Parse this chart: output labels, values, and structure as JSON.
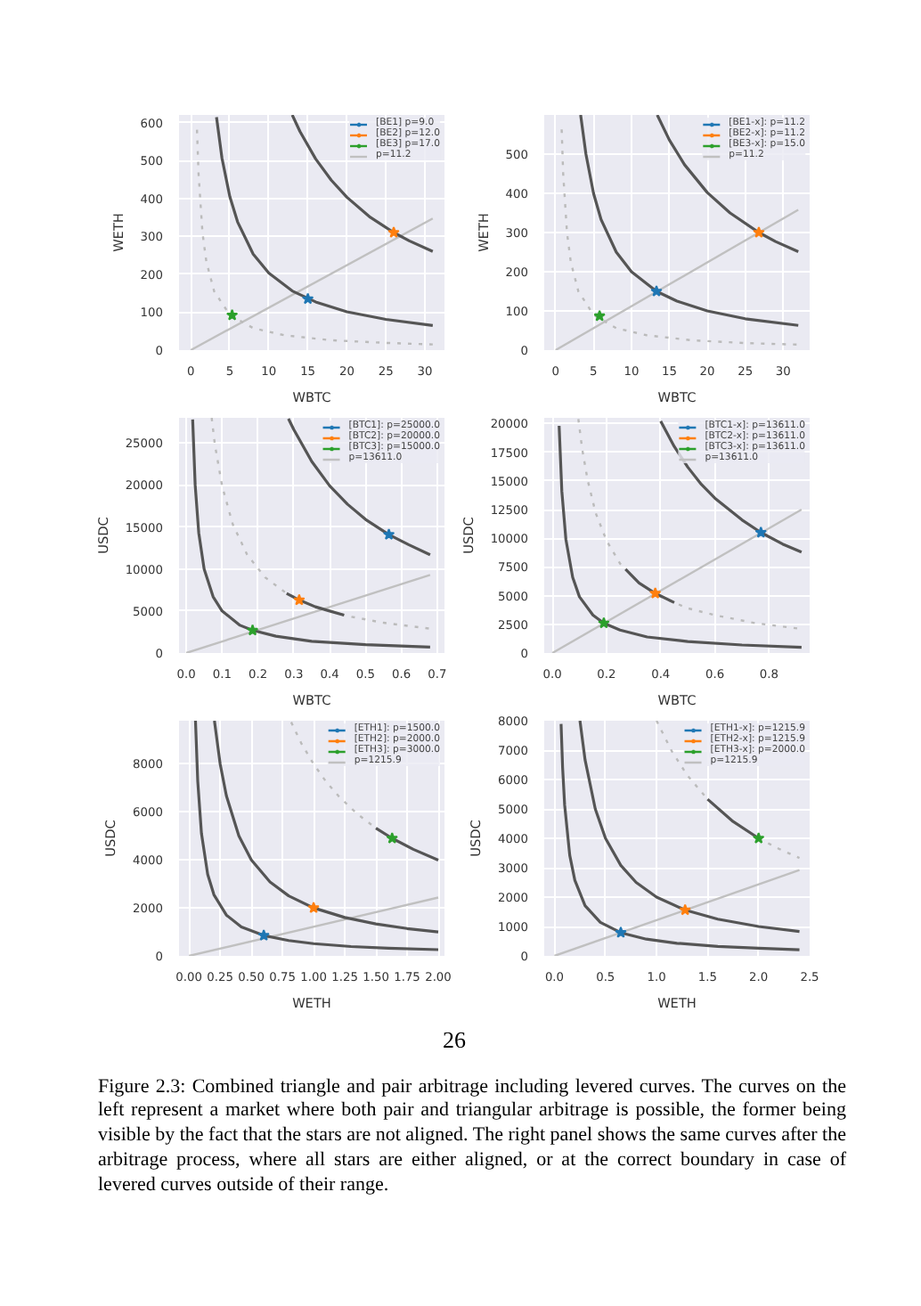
{
  "chart_data": [
    {
      "type": "line",
      "xlabel": "WBTC",
      "ylabel": "WETH",
      "xlim": [
        -1.5,
        32.5
      ],
      "ylim": [
        0,
        620
      ],
      "xticks": [
        0,
        5,
        10,
        15,
        20,
        25,
        30
      ],
      "yticks": [
        0,
        100,
        200,
        300,
        400,
        500,
        600
      ],
      "grid": true,
      "legend": "top right",
      "series": [
        {
          "name": "[BE1] p=9.0",
          "marker": "star",
          "color": "#1f77b4",
          "x": [
            15
          ],
          "values": [
            135
          ]
        },
        {
          "name": "[BE2] p=12.0",
          "marker": "star",
          "color": "#ff7f0e",
          "x": [
            26
          ],
          "values": [
            310
          ]
        },
        {
          "name": "[BE3] p=17.0",
          "marker": "star",
          "color": "#2ca02c",
          "x": [
            5.3
          ],
          "values": [
            92
          ]
        },
        {
          "name": "p=11.2",
          "color": "#c0c0c0",
          "x": [
            0,
            31
          ],
          "values": [
            0,
            347
          ]
        },
        {
          "color": "#555555",
          "x": [
            3.3,
            4,
            5,
            6,
            8,
            10,
            13,
            16,
            20,
            25,
            31
          ],
          "values": [
            614,
            506,
            405,
            338,
            253,
            203,
            156,
            127,
            101,
            81,
            65
          ]
        },
        {
          "color": "#555555",
          "x": [
            13,
            14,
            16,
            18,
            20,
            23,
            26,
            28,
            31
          ],
          "values": [
            620,
            576,
            504,
            448,
            403,
            350,
            310,
            288,
            260
          ]
        },
        {
          "color": "#bbbbbb",
          "line_style": "dotted",
          "x": [
            0.8,
            1,
            1.5,
            2,
            3,
            5,
            8,
            12,
            18,
            25,
            31
          ],
          "values": [
            581,
            465,
            310,
            233,
            155,
            93,
            58,
            39,
            26,
            19,
            15
          ]
        }
      ]
    },
    {
      "type": "line",
      "xlabel": "WBTC",
      "ylabel": "WETH",
      "xlim": [
        -1.5,
        33.5
      ],
      "ylim": [
        0,
        600
      ],
      "xticks": [
        0,
        5,
        10,
        15,
        20,
        25,
        30
      ],
      "yticks": [
        0,
        100,
        200,
        300,
        400,
        500
      ],
      "grid": true,
      "legend": "top right",
      "series": [
        {
          "name": "[BE1-x]: p=11.2",
          "marker": "star",
          "color": "#1f77b4",
          "x": [
            13.3
          ],
          "values": [
            150
          ]
        },
        {
          "name": "[BE2-x]: p=11.2",
          "marker": "star",
          "color": "#ff7f0e",
          "x": [
            26.8
          ],
          "values": [
            300
          ]
        },
        {
          "name": "[BE3-x]: p=15.0",
          "marker": "star",
          "color": "#2ca02c",
          "x": [
            5.8
          ],
          "values": [
            87
          ]
        },
        {
          "name": "p=11.2",
          "color": "#c0c0c0",
          "x": [
            0,
            32
          ],
          "values": [
            0,
            358
          ]
        },
        {
          "color": "#555555",
          "x": [
            3.3,
            4,
            5,
            6,
            8,
            10,
            13.3,
            16,
            20,
            25,
            32
          ],
          "values": [
            600,
            500,
            400,
            333,
            250,
            200,
            150,
            125,
            100,
            80,
            63
          ]
        },
        {
          "color": "#555555",
          "x": [
            13.4,
            15,
            17,
            20,
            23,
            26.8,
            29,
            32
          ],
          "values": [
            600,
            536,
            473,
            402,
            350,
            300,
            277,
            251
          ]
        },
        {
          "color": "#bbbbbb",
          "line_style": "dotted",
          "x": [
            0.8,
            1,
            1.5,
            2,
            3,
            5,
            8,
            12,
            18,
            25,
            32
          ],
          "values": [
            563,
            450,
            300,
            225,
            150,
            90,
            56,
            38,
            25,
            18,
            14
          ]
        }
      ]
    },
    {
      "type": "line",
      "xlabel": "WBTC",
      "ylabel": "USDC",
      "xlim": [
        -0.02,
        0.72
      ],
      "ylim": [
        0,
        28000
      ],
      "xticks": [
        {
          "value": 0,
          "label": "0.0"
        },
        0.1,
        0.2,
        0.3,
        0.4,
        0.5,
        0.6,
        0.7
      ],
      "yticks": [
        0,
        5000,
        10000,
        15000,
        20000,
        25000
      ],
      "grid": true,
      "legend": "top right",
      "series": [
        {
          "name": "[BTC1]: p=25000.0",
          "marker": "star",
          "color": "#1f77b4",
          "x": [
            0.565
          ],
          "values": [
            14100
          ]
        },
        {
          "name": "[BTC2]: p=20000.0",
          "marker": "star",
          "color": "#ff7f0e",
          "x": [
            0.315
          ],
          "values": [
            6300
          ]
        },
        {
          "name": "[BTC3]: p=15000.0",
          "marker": "star",
          "color": "#2ca02c",
          "x": [
            0.185
          ],
          "values": [
            2700
          ]
        },
        {
          "name": "p=13611.0",
          "color": "#c0c0c0",
          "x": [
            0,
            0.68
          ],
          "values": [
            0,
            9300
          ]
        },
        {
          "color": "#bbbbbb",
          "line_style": "dotted",
          "x": [
            0.071,
            0.08,
            0.1,
            0.13,
            0.17,
            0.22,
            0.28,
            0.36,
            0.45,
            0.55,
            0.68
          ],
          "values": [
            28000,
            24800,
            19900,
            15300,
            11700,
            9000,
            7100,
            5500,
            4400,
            3600,
            2900
          ]
        },
        {
          "color": "#555555",
          "x": [
            0.018,
            0.025,
            0.035,
            0.05,
            0.075,
            0.1,
            0.15,
            0.185,
            0.25,
            0.35,
            0.5,
            0.68
          ],
          "values": [
            27800,
            20000,
            14300,
            10000,
            6700,
            5000,
            3300,
            2700,
            2000,
            1400,
            1000,
            700
          ]
        },
        {
          "color": "#555555",
          "x": [
            0.285,
            0.3,
            0.35,
            0.4,
            0.45,
            0.5,
            0.565,
            0.62,
            0.68
          ],
          "values": [
            27900,
            26600,
            22800,
            19900,
            17700,
            15900,
            14100,
            12900,
            11700
          ]
        },
        {
          "color": "#555555",
          "x": [
            0.28,
            0.315,
            0.36,
            0.4,
            0.44
          ],
          "values": [
            7100,
            6300,
            5500,
            5000,
            4500
          ]
        }
      ]
    },
    {
      "type": "line",
      "xlabel": "WBTC",
      "ylabel": "USDC",
      "xlim": [
        -0.03,
        0.95
      ],
      "ylim": [
        0,
        20500
      ],
      "xticks": [
        {
          "value": 0,
          "label": "0.0"
        },
        0.2,
        0.4,
        0.6,
        0.8
      ],
      "yticks": [
        0,
        2500,
        5000,
        7500,
        10000,
        12500,
        15000,
        17500,
        20000
      ],
      "grid": true,
      "legend": "top right",
      "series": [
        {
          "name": "[BTC1-x]: p=13611.0",
          "marker": "star",
          "color": "#1f77b4",
          "x": [
            0.77
          ],
          "values": [
            10500
          ]
        },
        {
          "name": "[BTC2-x]: p=13611.0",
          "marker": "star",
          "color": "#ff7f0e",
          "x": [
            0.38
          ],
          "values": [
            5200
          ]
        },
        {
          "name": "[BTC3-x]: p=13611.0",
          "marker": "star",
          "color": "#2ca02c",
          "x": [
            0.19
          ],
          "values": [
            2600
          ]
        },
        {
          "name": "p=13611.0",
          "color": "#c0c0c0",
          "x": [
            0,
            0.92
          ],
          "values": [
            0,
            12500
          ]
        },
        {
          "color": "#bbbbbb",
          "line_style": "dotted",
          "x": [
            0.096,
            0.11,
            0.13,
            0.16,
            0.2,
            0.25,
            0.32,
            0.4,
            0.5,
            0.6,
            0.75,
            0.92
          ],
          "values": [
            20400,
            17800,
            15100,
            12200,
            9800,
            7800,
            6100,
            4900,
            3900,
            3300,
            2600,
            2100
          ]
        },
        {
          "color": "#555555",
          "x": [
            0.025,
            0.035,
            0.05,
            0.075,
            0.1,
            0.15,
            0.19,
            0.25,
            0.35,
            0.5,
            0.7,
            0.92
          ],
          "values": [
            19800,
            14100,
            9900,
            6600,
            4900,
            3300,
            2600,
            2000,
            1400,
            1000,
            700,
            500
          ]
        },
        {
          "color": "#555555",
          "x": [
            0.4,
            0.45,
            0.5,
            0.55,
            0.6,
            0.7,
            0.77,
            0.85,
            0.92
          ],
          "values": [
            20200,
            18000,
            16200,
            14700,
            13500,
            11600,
            10500,
            9500,
            8800
          ]
        },
        {
          "color": "#555555",
          "x": [
            0.27,
            0.32,
            0.38,
            0.45
          ],
          "values": [
            7300,
            6100,
            5200,
            4400
          ]
        }
      ]
    },
    {
      "type": "line",
      "xlabel": "WETH",
      "ylabel": "USDC",
      "xlim": [
        -0.08,
        2.05
      ],
      "ylim": [
        0,
        9800
      ],
      "xticks": [
        {
          "value": 0,
          "label": "0.00"
        },
        0.25,
        {
          "value": 0.5,
          "label": "0.50"
        },
        0.75,
        {
          "value": 1,
          "label": "1.00"
        },
        1.25,
        {
          "value": 1.5,
          "label": "1.50"
        },
        1.75,
        {
          "value": 2,
          "label": "2.00"
        }
      ],
      "yticks": [
        0,
        2000,
        4000,
        6000,
        8000
      ],
      "grid": true,
      "legend": "top right",
      "series": [
        {
          "name": "[ETH1]: p=1500.0",
          "marker": "star",
          "color": "#1f77b4",
          "x": [
            0.6
          ],
          "values": [
            850
          ]
        },
        {
          "name": "[ETH2]: p=2000.0",
          "marker": "star",
          "color": "#ff7f0e",
          "x": [
            1.0
          ],
          "values": [
            2000
          ]
        },
        {
          "name": "[ETH3]: p=3000.0",
          "marker": "star",
          "color": "#2ca02c",
          "x": [
            1.63
          ],
          "values": [
            4900
          ]
        },
        {
          "name": "p=1215.9",
          "color": "#c0c0c0",
          "x": [
            0,
            2
          ],
          "values": [
            0,
            2430
          ]
        },
        {
          "color": "#bbbbbb",
          "line_style": "dotted",
          "x": [
            0.82,
            0.9,
            1.0,
            1.1,
            1.2,
            1.35,
            1.5
          ],
          "values": [
            9740,
            8870,
            7990,
            7260,
            6660,
            5920,
            5320
          ]
        },
        {
          "color": "#555555",
          "x": [
            0.052,
            0.07,
            0.1,
            0.15,
            0.2,
            0.3,
            0.42,
            0.6,
            0.8,
            1.0,
            1.3,
            1.6,
            2.0
          ],
          "values": [
            9800,
            7290,
            5100,
            3400,
            2550,
            1700,
            1210,
            850,
            640,
            510,
            390,
            320,
            260
          ]
        },
        {
          "color": "#555555",
          "x": [
            0.204,
            0.25,
            0.3,
            0.4,
            0.5,
            0.65,
            0.8,
            1.0,
            1.25,
            1.5,
            1.75,
            2.0
          ],
          "values": [
            9800,
            8000,
            6670,
            5000,
            4000,
            3080,
            2500,
            2000,
            1600,
            1330,
            1140,
            1000
          ]
        },
        {
          "color": "#555555",
          "x": [
            1.5,
            1.63,
            1.8,
            2.0
          ],
          "values": [
            5320,
            4900,
            4440,
            3990
          ]
        }
      ]
    },
    {
      "type": "line",
      "xlabel": "WETH",
      "ylabel": "USDC",
      "xlim": [
        -0.1,
        2.5
      ],
      "ylim": [
        0,
        8000
      ],
      "xticks": [
        {
          "value": 0,
          "label": "0.0"
        },
        0.5,
        {
          "value": 1,
          "label": "1.0"
        },
        1.5,
        {
          "value": 2,
          "label": "2.0"
        },
        2.5
      ],
      "yticks": [
        0,
        1000,
        2000,
        3000,
        4000,
        5000,
        6000,
        7000,
        8000
      ],
      "grid": true,
      "legend": "top right",
      "series": [
        {
          "name": "[ETH1-x]: p=1215.9",
          "marker": "star",
          "color": "#1f77b4",
          "x": [
            0.65
          ],
          "values": [
            790
          ]
        },
        {
          "name": "[ETH2-x]: p=1215.9",
          "marker": "star",
          "color": "#ff7f0e",
          "x": [
            1.28
          ],
          "values": [
            1560
          ]
        },
        {
          "name": "[ETH3-x]: p=2000.0",
          "marker": "star",
          "color": "#2ca02c",
          "x": [
            2.0
          ],
          "values": [
            4000
          ]
        },
        {
          "name": "p=1215.9",
          "color": "#c0c0c0",
          "x": [
            0,
            2.4
          ],
          "values": [
            0,
            2920
          ]
        },
        {
          "color": "#bbbbbb",
          "line_style": "dotted",
          "x": [
            1.0,
            1.15,
            1.3,
            1.5
          ],
          "values": [
            8000,
            6960,
            6150,
            5330
          ]
        },
        {
          "color": "#bbbbbb",
          "line_style": "dotted",
          "x": [
            2.0,
            2.2,
            2.4
          ],
          "values": [
            4000,
            3640,
            3330
          ]
        },
        {
          "color": "#555555",
          "x": [
            0.065,
            0.08,
            0.1,
            0.15,
            0.2,
            0.3,
            0.45,
            0.65,
            0.9,
            1.2,
            1.6,
            2.0,
            2.4
          ],
          "values": [
            7890,
            6410,
            5130,
            3420,
            2570,
            1710,
            1140,
            790,
            570,
            430,
            320,
            260,
            210
          ]
        },
        {
          "color": "#555555",
          "x": [
            0.25,
            0.3,
            0.4,
            0.5,
            0.65,
            0.8,
            1.0,
            1.28,
            1.6,
            2.0,
            2.4
          ],
          "values": [
            8000,
            6670,
            5000,
            4000,
            3080,
            2500,
            2000,
            1560,
            1250,
            1000,
            830
          ]
        },
        {
          "color": "#555555",
          "x": [
            1.5,
            1.75,
            2.0
          ],
          "values": [
            5330,
            4570,
            4000
          ]
        }
      ],
      "annotations": [
        "26",
        "Figure 2.3: Combined triangle and pair arbitrage including levered curves. The curves on the left represent a market where both pair and triangular arbitrage is possible, the former being visible by the fact that the stars are not aligned. The right panel shows the same curves after the arbitrage process, where all stars are either aligned, or at the correct boundary in case of levered curves outside of their range."
      ]
    }
  ]
}
